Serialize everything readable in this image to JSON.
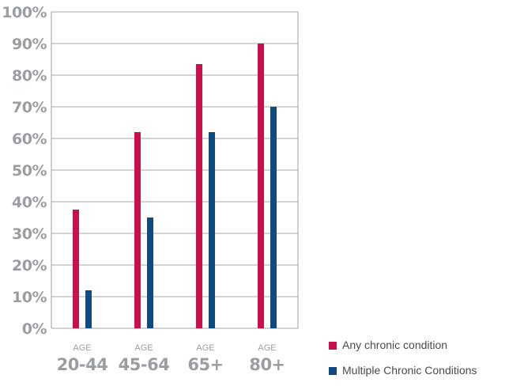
{
  "chart_data": {
    "type": "bar",
    "category_prefix": "AGE",
    "categories": [
      "20-44",
      "45-64",
      "65+",
      "80+"
    ],
    "series": [
      {
        "name": "Any chronic condition",
        "color": "#c8104a",
        "values": [
          37.5,
          62,
          83.5,
          90
        ]
      },
      {
        "name": "Multiple Chronic Conditions",
        "color": "#0f4a80",
        "values": [
          12,
          35,
          62,
          70
        ]
      }
    ],
    "y_ticks": [
      "0%",
      "10%",
      "20%",
      "30%",
      "40%",
      "50%",
      "60%",
      "70%",
      "80%",
      "90%",
      "100%"
    ],
    "ylim": [
      0,
      100
    ],
    "grid": true,
    "legend_position": "bottom-right"
  }
}
